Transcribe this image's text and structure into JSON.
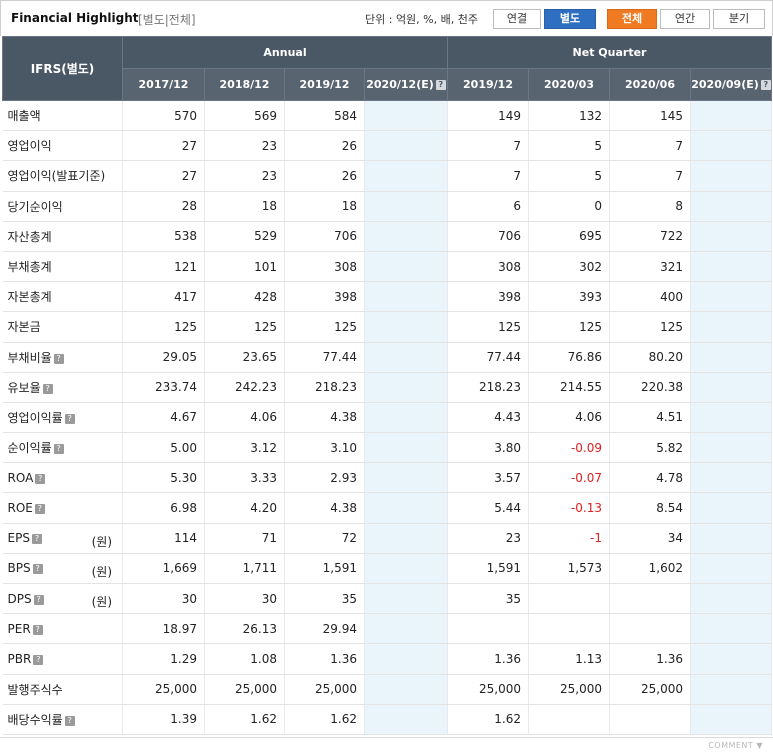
{
  "header": {
    "title": "Financial Highlight",
    "subtitle": "[별도|전체]",
    "unit": "단위 : 억원, %, 배, 천주",
    "btn_consolidated": "연결",
    "btn_separate": "별도",
    "btn_all": "전체",
    "btn_annual": "연간",
    "btn_quarter": "분기"
  },
  "table": {
    "ifrs_label": "IFRS(별도)",
    "group_annual": "Annual",
    "group_quarter": "Net Quarter",
    "periods": [
      "2017/12",
      "2018/12",
      "2019/12",
      "2020/12(E)",
      "2019/12",
      "2020/03",
      "2020/06",
      "2020/09(E)"
    ],
    "unit_won": "(원)",
    "rows": [
      {
        "label": "매출액",
        "help": false,
        "won": false,
        "values": [
          "570",
          "569",
          "584",
          "",
          "149",
          "132",
          "145",
          ""
        ]
      },
      {
        "label": "영업이익",
        "help": false,
        "won": false,
        "values": [
          "27",
          "23",
          "26",
          "",
          "7",
          "5",
          "7",
          ""
        ]
      },
      {
        "label": "영업이익(발표기준)",
        "help": false,
        "won": false,
        "values": [
          "27",
          "23",
          "26",
          "",
          "7",
          "5",
          "7",
          ""
        ]
      },
      {
        "label": "당기순이익",
        "help": false,
        "won": false,
        "values": [
          "28",
          "18",
          "18",
          "",
          "6",
          "0",
          "8",
          ""
        ]
      },
      {
        "label": "자산총계",
        "help": false,
        "won": false,
        "values": [
          "538",
          "529",
          "706",
          "",
          "706",
          "695",
          "722",
          ""
        ]
      },
      {
        "label": "부채총계",
        "help": false,
        "won": false,
        "values": [
          "121",
          "101",
          "308",
          "",
          "308",
          "302",
          "321",
          ""
        ]
      },
      {
        "label": "자본총계",
        "help": false,
        "won": false,
        "values": [
          "417",
          "428",
          "398",
          "",
          "398",
          "393",
          "400",
          ""
        ]
      },
      {
        "label": "자본금",
        "help": false,
        "won": false,
        "values": [
          "125",
          "125",
          "125",
          "",
          "125",
          "125",
          "125",
          ""
        ]
      },
      {
        "label": "부채비율",
        "help": true,
        "won": false,
        "values": [
          "29.05",
          "23.65",
          "77.44",
          "",
          "77.44",
          "76.86",
          "80.20",
          ""
        ]
      },
      {
        "label": "유보율",
        "help": true,
        "won": false,
        "values": [
          "233.74",
          "242.23",
          "218.23",
          "",
          "218.23",
          "214.55",
          "220.38",
          ""
        ]
      },
      {
        "label": "영업이익률",
        "help": true,
        "won": false,
        "values": [
          "4.67",
          "4.06",
          "4.38",
          "",
          "4.43",
          "4.06",
          "4.51",
          ""
        ]
      },
      {
        "label": "순이익률",
        "help": true,
        "won": false,
        "values": [
          "5.00",
          "3.12",
          "3.10",
          "",
          "3.80",
          "-0.09",
          "5.82",
          ""
        ]
      },
      {
        "label": "ROA",
        "help": true,
        "won": false,
        "values": [
          "5.30",
          "3.33",
          "2.93",
          "",
          "3.57",
          "-0.07",
          "4.78",
          ""
        ]
      },
      {
        "label": "ROE",
        "help": true,
        "won": false,
        "values": [
          "6.98",
          "4.20",
          "4.38",
          "",
          "5.44",
          "-0.13",
          "8.54",
          ""
        ]
      },
      {
        "label": "EPS",
        "help": true,
        "won": true,
        "values": [
          "114",
          "71",
          "72",
          "",
          "23",
          "-1",
          "34",
          ""
        ]
      },
      {
        "label": "BPS",
        "help": true,
        "won": true,
        "values": [
          "1,669",
          "1,711",
          "1,591",
          "",
          "1,591",
          "1,573",
          "1,602",
          ""
        ]
      },
      {
        "label": "DPS",
        "help": true,
        "won": true,
        "values": [
          "30",
          "30",
          "35",
          "",
          "35",
          "",
          "",
          ""
        ]
      },
      {
        "label": "PER",
        "help": true,
        "won": false,
        "values": [
          "18.97",
          "26.13",
          "29.94",
          "",
          "",
          "",
          "",
          ""
        ]
      },
      {
        "label": "PBR",
        "help": true,
        "won": false,
        "values": [
          "1.29",
          "1.08",
          "1.36",
          "",
          "1.36",
          "1.13",
          "1.36",
          ""
        ]
      },
      {
        "label": "발행주식수",
        "help": false,
        "won": false,
        "values": [
          "25,000",
          "25,000",
          "25,000",
          "",
          "25,000",
          "25,000",
          "25,000",
          ""
        ]
      },
      {
        "label": "배당수익률",
        "help": true,
        "won": false,
        "values": [
          "1.39",
          "1.62",
          "1.62",
          "",
          "1.62",
          "",
          "",
          ""
        ]
      }
    ]
  },
  "footer": {
    "comment": "COMMENT ▼"
  },
  "colors": {
    "header_bg": "#4a5765",
    "estimate_bg": "#e9f4fb",
    "negative": "#e02020",
    "blue": "#2f6fc2",
    "orange": "#f07a22"
  }
}
